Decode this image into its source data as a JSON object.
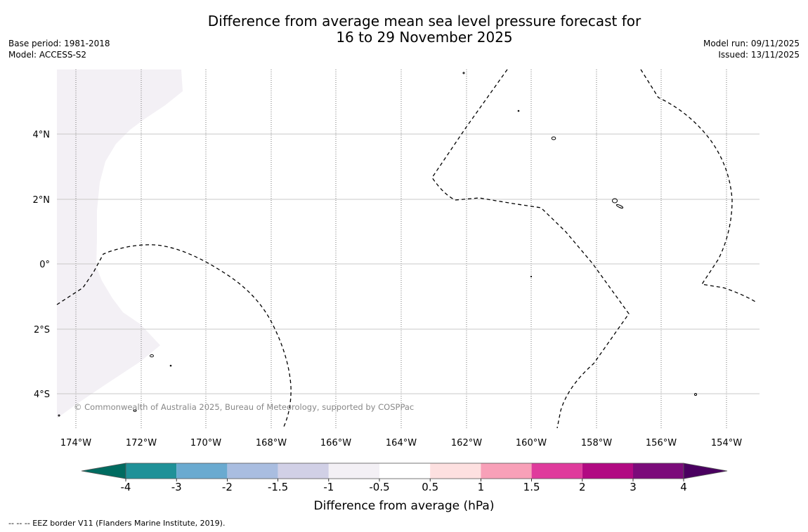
{
  "title": {
    "line1": "Difference from average mean sea level pressure forecast for",
    "line2": "16 to 29 November 2025"
  },
  "meta_left": {
    "base_period": "Base period: 1981-2018",
    "model": "Model: ACCESS-S2"
  },
  "meta_right": {
    "model_run": "Model run: 09/11/2025",
    "issued": "Issued: 13/11/2025"
  },
  "map": {
    "lat_labels": [
      "4°N",
      "2°N",
      "0°",
      "2°S",
      "4°S"
    ],
    "lon_labels": [
      "174°W",
      "172°W",
      "170°W",
      "168°W",
      "166°W",
      "164°W",
      "162°W",
      "160°W",
      "158°W",
      "156°W",
      "154°W"
    ],
    "copyright": "© Commonwealth of Australia 2025, Bureau of Meteorology, supported by COSPPac",
    "anomaly_region_color": "#f3f0f5",
    "eez_line_color": "#000000"
  },
  "colorbar": {
    "ticks": [
      "-4",
      "-3",
      "-2",
      "-1.5",
      "-1",
      "-0.5",
      "0.5",
      "1",
      "1.5",
      "2",
      "3",
      "4"
    ],
    "colors": [
      "#006b60",
      "#1f9198",
      "#6aaad0",
      "#a9bde0",
      "#d1d0e6",
      "#f3f0f5",
      "#ffffff",
      "#fde0e0",
      "#f8a0b8",
      "#df3b9c",
      "#b10a82",
      "#7b0b7a",
      "#4a0060"
    ],
    "label": "Difference from average (hPa)"
  },
  "footnote": "--  --  -- EEZ border V11 (Flanders Marine Institute, 2019)."
}
